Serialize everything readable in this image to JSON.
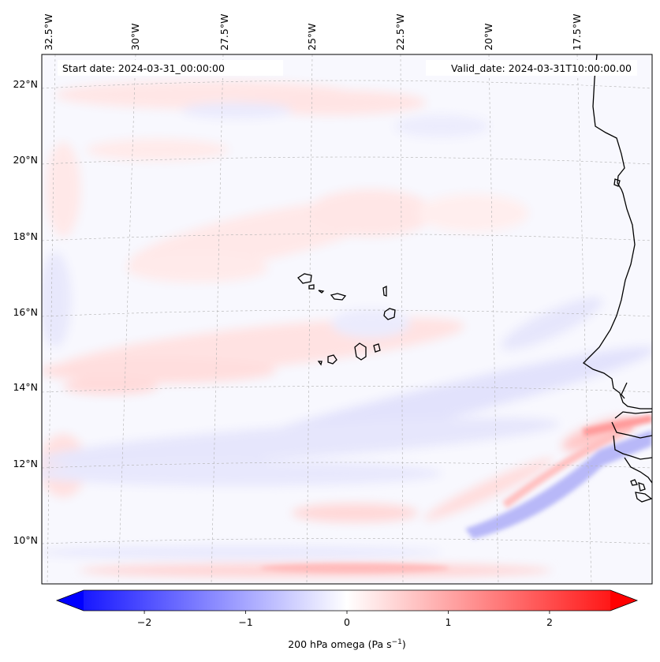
{
  "header": {
    "start_date": "Start date: 2024-03-31_00:00:00",
    "valid_date": "Valid_date: 2024-03-31T10:00:00.00"
  },
  "axes": {
    "lon_labels": [
      "32.5°W",
      "30°W",
      "27.5°W",
      "25°W",
      "22.5°W",
      "20°W",
      "17.5°W"
    ],
    "lat_labels": [
      "22°N",
      "20°N",
      "18°N",
      "16°N",
      "14°N",
      "12°N",
      "10°N"
    ]
  },
  "colorbar": {
    "label": "200 hPa omega (Pa s",
    "label_sup": "−1",
    "label_end": ")",
    "ticks": [
      "−2",
      "−1",
      "0",
      "1",
      "2"
    ],
    "range": [
      -2.6,
      2.6
    ],
    "negative_color": "#0000ff",
    "positive_color": "#ff0000"
  },
  "colors": {
    "coastline": "#000000",
    "gridline": "#b0b0b0",
    "field_background": "#f8f8fe"
  }
}
